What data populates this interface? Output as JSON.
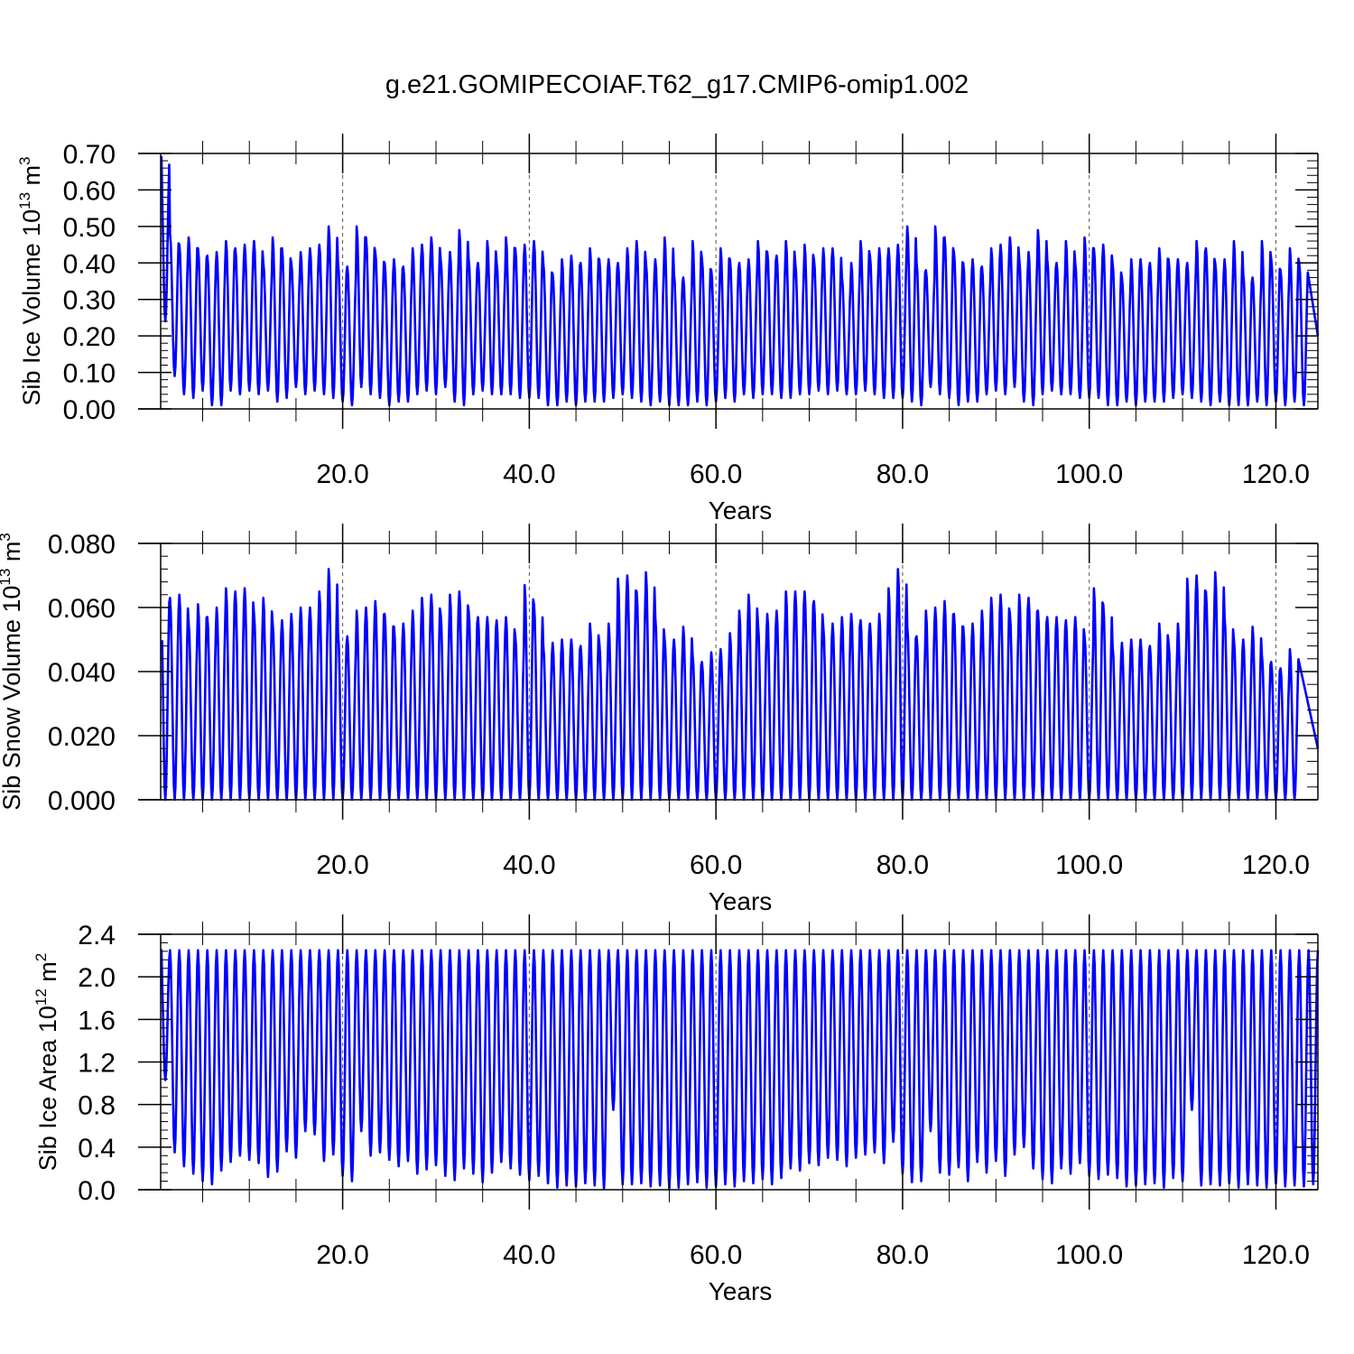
{
  "title": "g.e21.GOMIPECOIAF.T62_g17.CMIP6-omip1.002",
  "chart_data": [
    {
      "type": "line",
      "id": "ice-volume",
      "ylabel": "Sib Ice Volume 10",
      "ylabel_exp": "13",
      "ylabel_unit": " m",
      "ylabel_unit_exp": "3",
      "xlabel": "Years",
      "xlim": [
        0.5,
        124.5
      ],
      "ylim": [
        0,
        0.7
      ],
      "yticks": [
        0.0,
        0.1,
        0.2,
        0.3,
        0.4,
        0.5,
        0.6,
        0.7
      ],
      "ytick_labels": [
        "0.00",
        "0.10",
        "0.20",
        "0.30",
        "0.40",
        "0.50",
        "0.60",
        "0.70"
      ],
      "xticks": [
        20,
        40,
        60,
        80,
        100,
        120
      ],
      "xtick_labels": [
        "20.0",
        "40.0",
        "60.0",
        "80.0",
        "100.0",
        "120.0"
      ],
      "series_color": "#0000ff",
      "start_value": 0.69,
      "end_value": 0.2,
      "annual_max": [
        0.7,
        0.48,
        0.45,
        0.47,
        0.44,
        0.42,
        0.43,
        0.46,
        0.44,
        0.45,
        0.46,
        0.4,
        0.47,
        0.44,
        0.4,
        0.43,
        0.44,
        0.45,
        0.5,
        0.4,
        0.39,
        0.5,
        0.47,
        0.43,
        0.4,
        0.41,
        0.39,
        0.44,
        0.45,
        0.47,
        0.41,
        0.43,
        0.49,
        0.41,
        0.4,
        0.46,
        0.4,
        0.47,
        0.44,
        0.45,
        0.46,
        0.4,
        0.37,
        0.41,
        0.42,
        0.4,
        0.44,
        0.41,
        0.41,
        0.4,
        0.44,
        0.46,
        0.4,
        0.41,
        0.47,
        0.37,
        0.36,
        0.46,
        0.41,
        0.38,
        0.44,
        0.41,
        0.4,
        0.41,
        0.46,
        0.43,
        0.42,
        0.46,
        0.4,
        0.45,
        0.41,
        0.44,
        0.44,
        0.36,
        0.4,
        0.46,
        0.42,
        0.44,
        0.44,
        0.45,
        0.5,
        0.4,
        0.38,
        0.5,
        0.47,
        0.43,
        0.4,
        0.41,
        0.39,
        0.44,
        0.45,
        0.47,
        0.41,
        0.43,
        0.49,
        0.41,
        0.4,
        0.46,
        0.4,
        0.47,
        0.44,
        0.45,
        0.4,
        0.36,
        0.41,
        0.41,
        0.4,
        0.44,
        0.41,
        0.41,
        0.4,
        0.46,
        0.44,
        0.4,
        0.41,
        0.46,
        0.37,
        0.36,
        0.46,
        0.41,
        0.38,
        0.44,
        0.4
      ],
      "annual_min": [
        0.24,
        0.09,
        0.04,
        0.03,
        0.05,
        0.01,
        0.01,
        0.05,
        0.04,
        0.05,
        0.04,
        0.05,
        0.02,
        0.03,
        0.06,
        0.04,
        0.05,
        0.04,
        0.03,
        0.02,
        0.01,
        0.06,
        0.04,
        0.03,
        0.01,
        0.02,
        0.02,
        0.04,
        0.05,
        0.04,
        0.06,
        0.02,
        0.01,
        0.04,
        0.05,
        0.04,
        0.04,
        0.04,
        0.03,
        0.03,
        0.03,
        0.01,
        0.01,
        0.02,
        0.01,
        0.02,
        0.02,
        0.02,
        0.03,
        0.04,
        0.03,
        0.02,
        0.01,
        0.02,
        0.01,
        0.01,
        0.01,
        0.02,
        0.01,
        0.02,
        0.03,
        0.02,
        0.04,
        0.03,
        0.04,
        0.04,
        0.03,
        0.03,
        0.04,
        0.04,
        0.05,
        0.04,
        0.05,
        0.04,
        0.04,
        0.05,
        0.04,
        0.03,
        0.03,
        0.03,
        0.02,
        0.01,
        0.06,
        0.04,
        0.03,
        0.01,
        0.02,
        0.02,
        0.04,
        0.05,
        0.04,
        0.06,
        0.02,
        0.01,
        0.04,
        0.05,
        0.04,
        0.04,
        0.03,
        0.03,
        0.03,
        0.01,
        0.01,
        0.02,
        0.01,
        0.02,
        0.02,
        0.02,
        0.03,
        0.04,
        0.03,
        0.02,
        0.01,
        0.02,
        0.01,
        0.01,
        0.01,
        0.02,
        0.01,
        0.02,
        0.01,
        0.02,
        0.01
      ]
    },
    {
      "type": "line",
      "id": "snow-volume",
      "ylabel": "Sib Snow Volume 10",
      "ylabel_exp": "13",
      "ylabel_unit": " m",
      "ylabel_unit_exp": "3",
      "xlabel": "Years",
      "xlim": [
        0.5,
        124.5
      ],
      "ylim": [
        0,
        0.08
      ],
      "yticks": [
        0.0,
        0.02,
        0.04,
        0.06,
        0.08
      ],
      "ytick_labels": [
        "0.000",
        "0.020",
        "0.040",
        "0.060",
        "0.080"
      ],
      "xticks": [
        20,
        40,
        60,
        80,
        100,
        120
      ],
      "xtick_labels": [
        "20.0",
        "40.0",
        "60.0",
        "80.0",
        "100.0",
        "120.0"
      ],
      "series_color": "#0000ff",
      "start_value": 0.047,
      "end_value": 0.016,
      "annual_max": [
        0.066,
        0.063,
        0.064,
        0.055,
        0.061,
        0.057,
        0.06,
        0.066,
        0.065,
        0.066,
        0.058,
        0.063,
        0.055,
        0.056,
        0.058,
        0.06,
        0.06,
        0.065,
        0.072,
        0.052,
        0.051,
        0.059,
        0.06,
        0.062,
        0.058,
        0.054,
        0.055,
        0.059,
        0.063,
        0.064,
        0.058,
        0.064,
        0.065,
        0.059,
        0.057,
        0.057,
        0.056,
        0.057,
        0.051,
        0.067,
        0.061,
        0.048,
        0.049,
        0.05,
        0.05,
        0.048,
        0.055,
        0.049,
        0.055,
        0.069,
        0.07,
        0.065,
        0.071,
        0.057,
        0.05,
        0.05,
        0.054,
        0.045,
        0.043,
        0.046,
        0.047,
        0.052,
        0.059,
        0.064,
        0.055,
        0.058,
        0.059,
        0.065,
        0.065,
        0.065,
        0.062,
        0.054,
        0.055,
        0.057,
        0.058,
        0.056,
        0.055,
        0.058,
        0.066,
        0.072,
        0.054,
        0.051,
        0.059,
        0.06,
        0.062,
        0.058,
        0.054,
        0.055,
        0.059,
        0.063,
        0.064,
        0.058,
        0.064,
        0.063,
        0.059,
        0.057,
        0.057,
        0.056,
        0.057,
        0.051,
        0.066,
        0.061,
        0.048,
        0.049,
        0.05,
        0.05,
        0.048,
        0.055,
        0.049,
        0.055,
        0.069,
        0.07,
        0.065,
        0.071,
        0.057,
        0.05,
        0.05,
        0.054,
        0.045,
        0.043,
        0.041,
        0.047
      ],
      "annual_min": [
        0.0,
        0.0,
        0.0,
        0.0,
        0.0,
        0.0,
        0.0,
        0.0,
        0.0,
        0.0,
        0.0,
        0.0,
        0.0,
        0.0,
        0.0,
        0.0,
        0.0,
        0.0,
        0.0,
        0.0,
        0.0,
        0.0,
        0.0,
        0.0,
        0.0,
        0.0,
        0.0,
        0.0,
        0.0,
        0.0,
        0.0,
        0.0,
        0.0,
        0.0,
        0.0,
        0.0,
        0.0,
        0.0,
        0.0,
        0.0,
        0.0,
        0.0,
        0.0,
        0.0,
        0.0,
        0.0,
        0.0,
        0.0,
        0.0,
        0.0,
        0.0,
        0.0,
        0.0,
        0.0,
        0.0,
        0.0,
        0.0,
        0.0,
        0.0,
        0.0,
        0.0,
        0.0,
        0.0,
        0.0,
        0.0,
        0.0,
        0.0,
        0.0,
        0.0,
        0.0,
        0.0,
        0.0,
        0.0,
        0.0,
        0.0,
        0.0,
        0.0,
        0.0,
        0.0,
        0.0,
        0.0,
        0.0,
        0.0,
        0.0,
        0.0,
        0.0,
        0.0,
        0.0,
        0.0,
        0.0,
        0.0,
        0.0,
        0.0,
        0.0,
        0.0,
        0.0,
        0.0,
        0.0,
        0.0,
        0.0,
        0.0,
        0.0,
        0.0,
        0.0,
        0.0,
        0.0,
        0.0,
        0.0,
        0.0,
        0.0,
        0.0,
        0.0,
        0.0,
        0.0,
        0.0,
        0.0,
        0.0,
        0.0,
        0.0,
        0.0,
        0.0,
        0.0
      ]
    },
    {
      "type": "line",
      "id": "ice-area",
      "ylabel": "Sib Ice Area 10",
      "ylabel_exp": "12",
      "ylabel_unit": " m",
      "ylabel_unit_exp": "2",
      "xlabel": "Years",
      "xlim": [
        0.5,
        124.5
      ],
      "ylim": [
        0,
        2.4
      ],
      "yticks": [
        0.0,
        0.4,
        0.8,
        1.2,
        1.6,
        2.0,
        2.4
      ],
      "ytick_labels": [
        "0.0",
        "0.4",
        "0.8",
        "1.2",
        "1.6",
        "2.0",
        "2.4"
      ],
      "xticks": [
        20,
        40,
        60,
        80,
        100,
        120
      ],
      "xtick_labels": [
        "20.0",
        "40.0",
        "60.0",
        "80.0",
        "100.0",
        "120.0"
      ],
      "series_color": "#0000ff",
      "start_value": 2.25,
      "end_value": 2.25,
      "annual_max": [
        2.25,
        2.25,
        2.25,
        2.25,
        2.25,
        2.25,
        2.25,
        2.25,
        2.25,
        2.25,
        2.25,
        2.25,
        2.25,
        2.25,
        2.25,
        2.25,
        2.25,
        2.25,
        2.25,
        2.25,
        2.25,
        2.25,
        2.25,
        2.25,
        2.25,
        2.25,
        2.25,
        2.25,
        2.25,
        2.25,
        2.25,
        2.25,
        2.25,
        2.25,
        2.25,
        2.25,
        2.25,
        2.25,
        2.25,
        2.25,
        2.25,
        2.25,
        2.25,
        2.25,
        2.25,
        2.25,
        2.25,
        2.25,
        2.25,
        2.25,
        2.25,
        2.25,
        2.25,
        2.25,
        2.25,
        2.25,
        2.25,
        2.25,
        2.25,
        2.25,
        2.25,
        2.25,
        2.25,
        2.25,
        2.25,
        2.25,
        2.25,
        2.25,
        2.25,
        2.25,
        2.25,
        2.25,
        2.25,
        2.25,
        2.25,
        2.25,
        2.25,
        2.25,
        2.25,
        2.25,
        2.25,
        2.25,
        2.25,
        2.25,
        2.25,
        2.25,
        2.25,
        2.25,
        2.25,
        2.25,
        2.25,
        2.25,
        2.25,
        2.25,
        2.25,
        2.25,
        2.25,
        2.25,
        2.25,
        2.25,
        2.25,
        2.25,
        2.25,
        2.25,
        2.25,
        2.25,
        2.25,
        2.25,
        2.25,
        2.25,
        2.25,
        2.25,
        2.25,
        2.25,
        2.25,
        2.25,
        2.25,
        2.25,
        2.25,
        2.25,
        2.25,
        2.25,
        2.25,
        2.25
      ],
      "annual_min": [
        1.03,
        0.35,
        0.22,
        0.15,
        0.08,
        0.05,
        0.18,
        0.26,
        0.32,
        0.28,
        0.25,
        0.12,
        0.17,
        0.36,
        0.3,
        0.55,
        0.52,
        0.27,
        0.33,
        0.13,
        0.08,
        0.55,
        0.32,
        0.35,
        0.28,
        0.22,
        0.27,
        0.15,
        0.19,
        0.23,
        0.13,
        0.09,
        0.2,
        0.15,
        0.07,
        0.16,
        0.26,
        0.2,
        0.14,
        0.09,
        0.13,
        0.06,
        0.02,
        0.04,
        0.03,
        0.06,
        0.04,
        0.01,
        0.75,
        0.05,
        0.05,
        0.06,
        0.03,
        0.04,
        0.01,
        0.02,
        0.05,
        0.07,
        0.02,
        0.03,
        0.05,
        0.03,
        0.08,
        0.06,
        0.1,
        0.05,
        0.11,
        0.2,
        0.18,
        0.25,
        0.23,
        0.3,
        0.28,
        0.22,
        0.3,
        0.33,
        0.35,
        0.25,
        0.45,
        0.15,
        0.07,
        0.08,
        0.55,
        0.16,
        0.14,
        0.21,
        0.08,
        0.26,
        0.16,
        0.27,
        0.13,
        0.33,
        0.4,
        0.2,
        0.1,
        0.06,
        0.2,
        0.15,
        0.25,
        0.13,
        0.1,
        0.14,
        0.11,
        0.03,
        0.04,
        0.05,
        0.06,
        0.02,
        0.11,
        0.08,
        0.75,
        0.04,
        0.05,
        0.04,
        0.06,
        0.02,
        0.05,
        0.04,
        0.02,
        0.06,
        0.03,
        0.04,
        0.03,
        0.05
      ]
    }
  ]
}
